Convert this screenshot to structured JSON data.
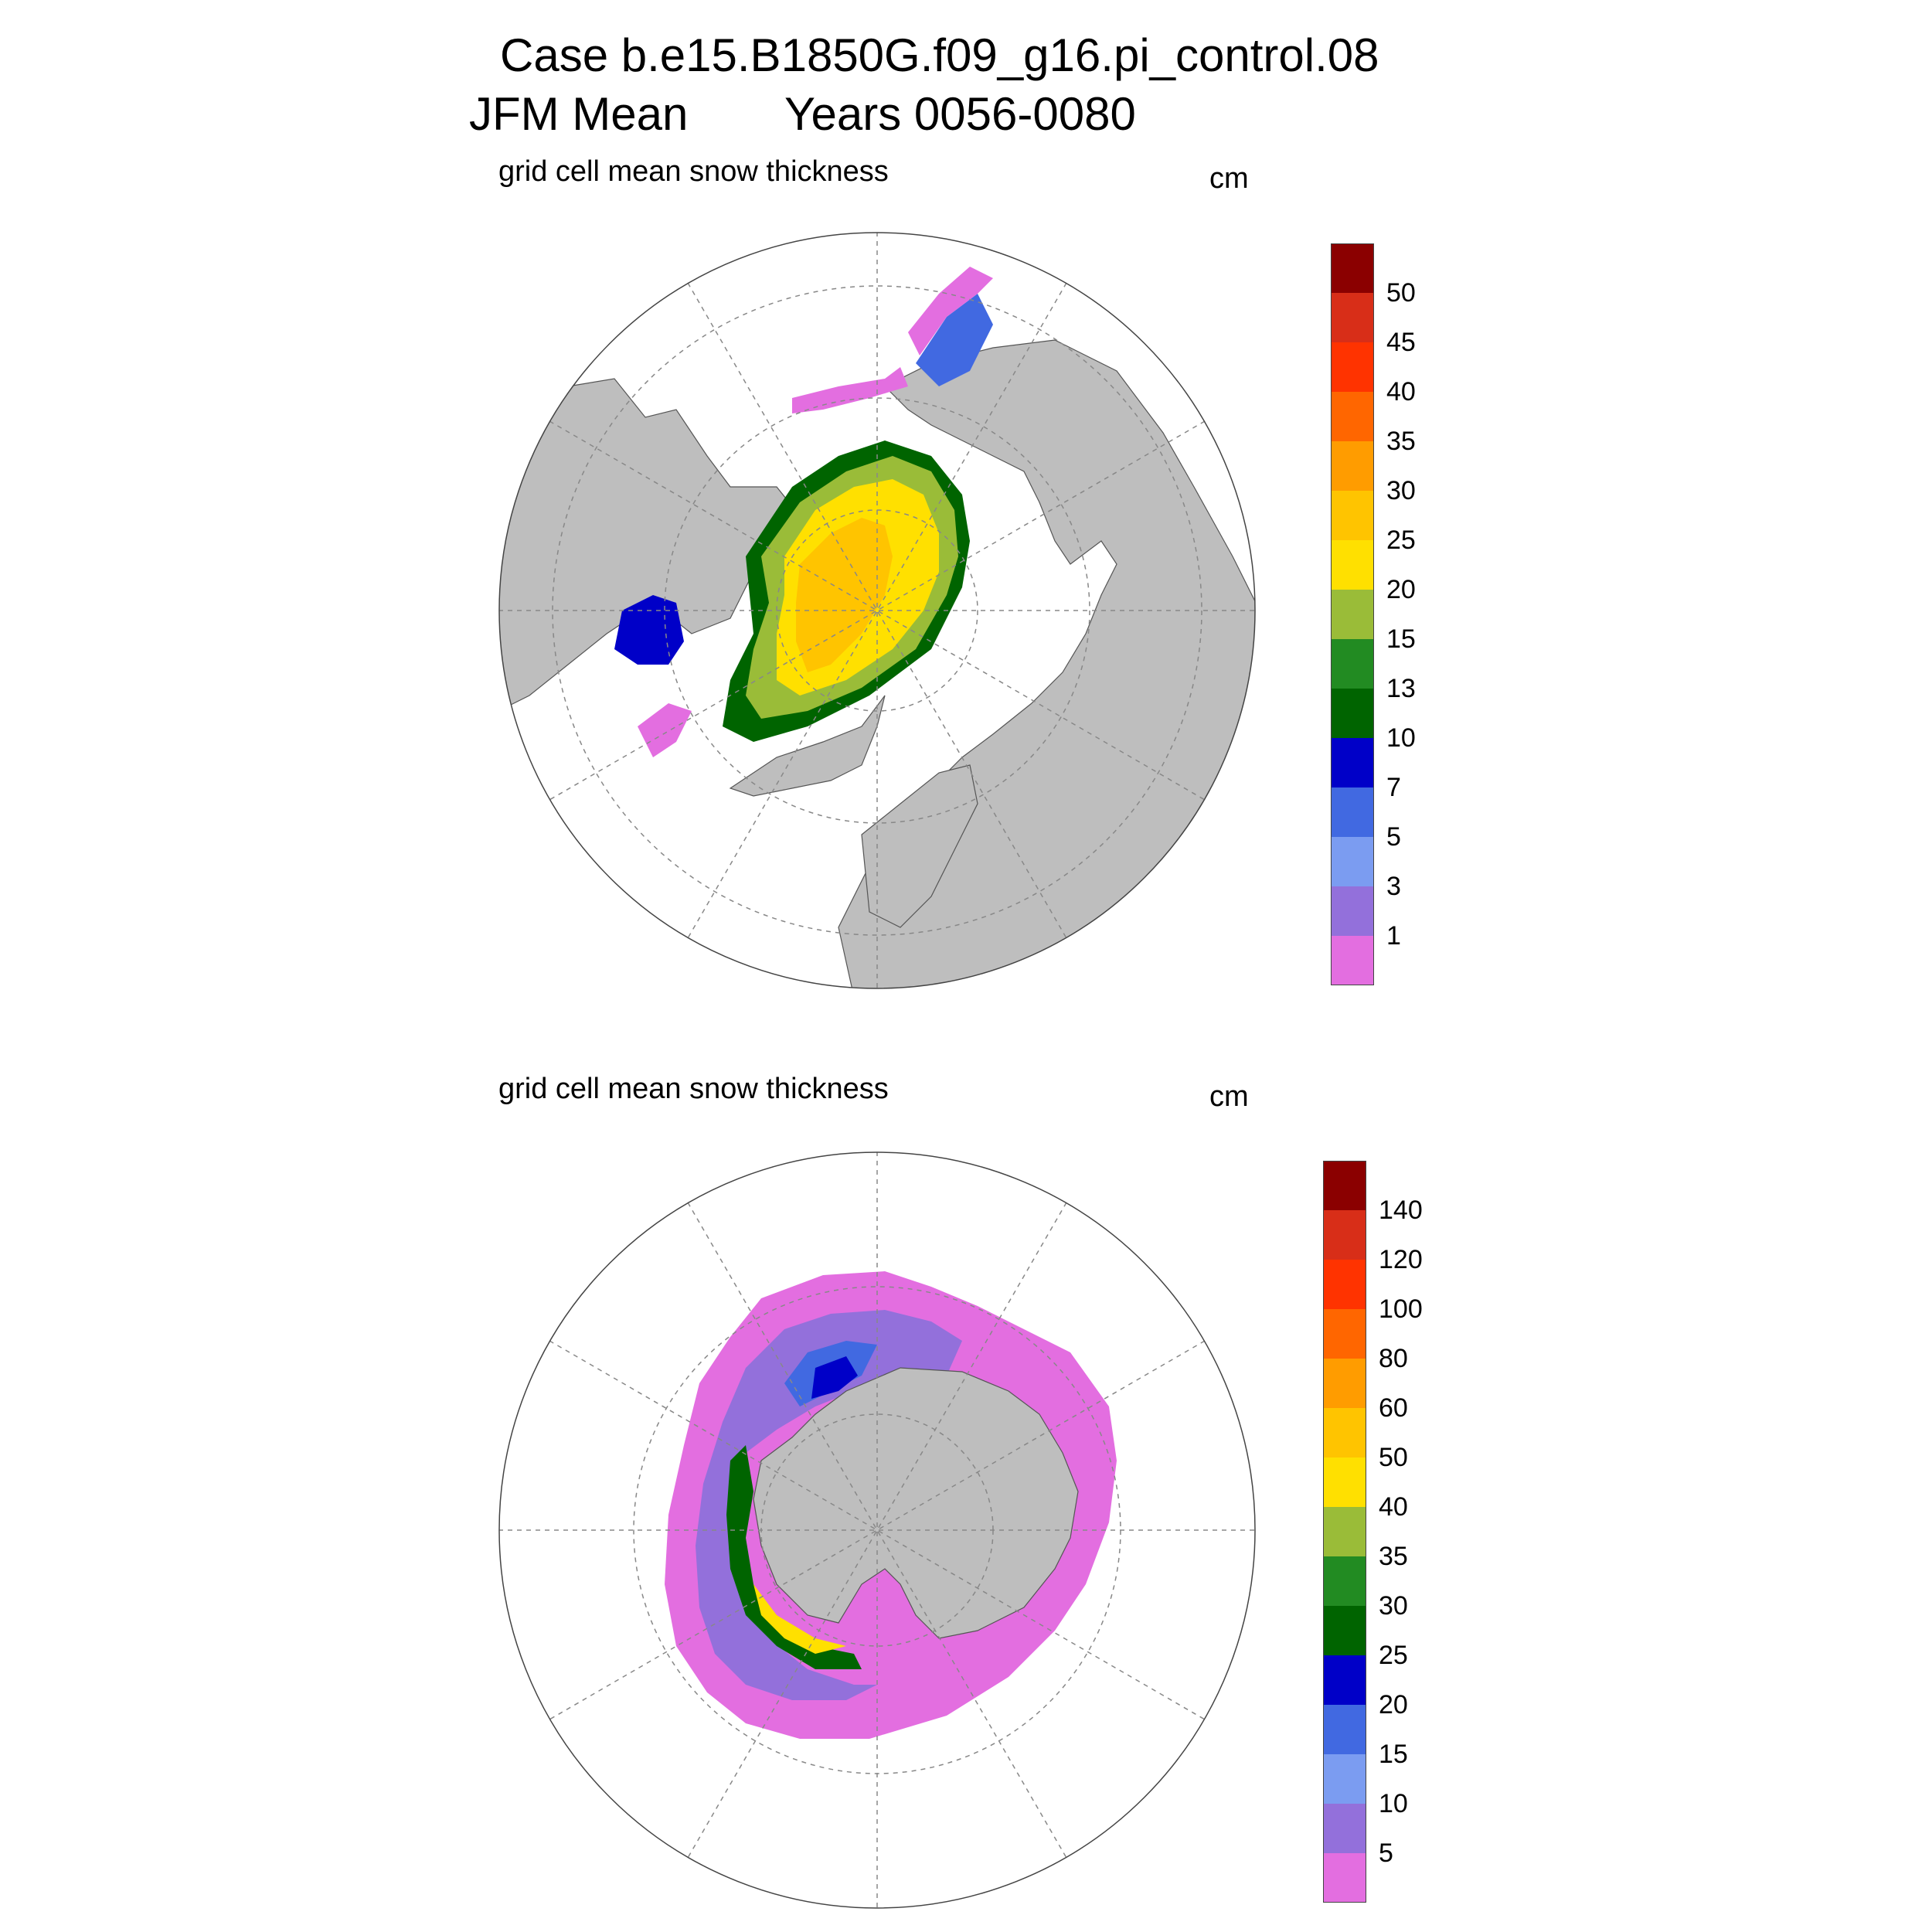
{
  "title": {
    "case": "Case b.e15.B1850G.f09_g16.pi_control.08",
    "season": "JFM Mean",
    "years": "Years 0056-0080"
  },
  "panels": [
    {
      "id": "north",
      "label": "grid cell mean snow thickness",
      "units": "cm",
      "colorbar": {
        "colors": [
          "#e36ee0",
          "#9370db",
          "#7b9cf1",
          "#4169e1",
          "#0000c8",
          "#006400",
          "#228b22",
          "#9abc38",
          "#ffe000",
          "#ffc400",
          "#ff9c00",
          "#ff6600",
          "#ff3300",
          "#d82e18",
          "#8b0000"
        ],
        "labels": [
          "1",
          "3",
          "5",
          "7",
          "10",
          "13",
          "15",
          "20",
          "25",
          "30",
          "35",
          "40",
          "45",
          "50"
        ]
      }
    },
    {
      "id": "south",
      "label": "grid cell mean snow thickness",
      "units": "cm",
      "colorbar": {
        "colors": [
          "#e36ee0",
          "#9370db",
          "#7b9cf1",
          "#4169e1",
          "#0000c8",
          "#006400",
          "#228b22",
          "#9abc38",
          "#ffe000",
          "#ffc400",
          "#ff9c00",
          "#ff6600",
          "#ff3300",
          "#d82e18",
          "#8b0000"
        ],
        "labels": [
          "5",
          "10",
          "15",
          "20",
          "25",
          "30",
          "35",
          "40",
          "50",
          "60",
          "80",
          "100",
          "120",
          "140"
        ]
      }
    }
  ],
  "colors": {
    "land": "#bebebe",
    "ocean": "#ffffff",
    "grid": "#888888"
  }
}
